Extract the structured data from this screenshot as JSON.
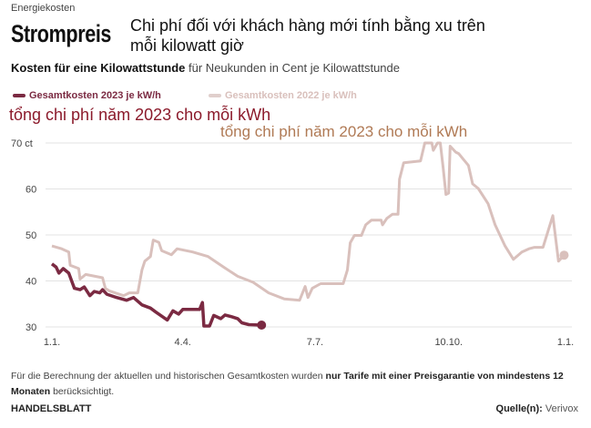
{
  "header": {
    "kicker": "Energiekosten",
    "title": "Strompreis",
    "overlay_translation": "Chi phí đối với khách hàng mới tính bằng xu trên mỗi kilowatt giờ",
    "subtitle_bold": "Kosten für eine Kilowattstunde",
    "subtitle_rest": " für Neukunden in Cent je Kilowattstunde"
  },
  "annotations": {
    "red": "tổng chi phí năm 2023 cho mỗi kWh",
    "tan": "tổng chi phí năm 2023 cho mỗi kWh"
  },
  "colors": {
    "s2023": "#7b2a42",
    "s2022": "#d9c0bc",
    "grid": "#e3e3e3"
  },
  "chart_data": {
    "type": "line",
    "title": "Strompreis",
    "ylabel": "ct",
    "xlabel": "",
    "ylim": [
      30,
      70
    ],
    "xlim_days": [
      0,
      365
    ],
    "yticks": [
      {
        "v": 70,
        "label": "70 ct"
      },
      {
        "v": 60,
        "label": "60"
      },
      {
        "v": 50,
        "label": "50"
      },
      {
        "v": 40,
        "label": "40"
      },
      {
        "v": 30,
        "label": "30"
      }
    ],
    "xticks": [
      {
        "d": 0,
        "label": "1.1."
      },
      {
        "d": 93,
        "label": "4.4."
      },
      {
        "d": 187,
        "label": "7.7."
      },
      {
        "d": 282,
        "label": "10.10."
      },
      {
        "d": 365,
        "label": "1.1."
      }
    ],
    "grid": true,
    "legend_placement": "top-left",
    "series": [
      {
        "name": "Gesamtkosten 2023 je kW/h",
        "color": "#7b2a42",
        "points": [
          [
            0,
            43.7
          ],
          [
            3,
            43
          ],
          [
            5,
            41.7
          ],
          [
            8,
            42.7
          ],
          [
            12,
            41.7
          ],
          [
            16,
            38.4
          ],
          [
            20,
            38.1
          ],
          [
            23,
            38.7
          ],
          [
            27,
            36.8
          ],
          [
            30,
            37.7
          ],
          [
            34,
            37.4
          ],
          [
            36,
            38.1
          ],
          [
            39,
            37.1
          ],
          [
            46,
            36.4
          ],
          [
            53,
            35.8
          ],
          [
            58,
            36.4
          ],
          [
            64,
            34.8
          ],
          [
            70,
            34.1
          ],
          [
            74,
            33.2
          ],
          [
            82,
            31.5
          ],
          [
            86,
            33.5
          ],
          [
            90,
            32.8
          ],
          [
            93,
            33.8
          ],
          [
            105,
            33.8
          ],
          [
            107,
            35.3
          ],
          [
            108,
            30.2
          ],
          [
            112,
            30.2
          ],
          [
            115,
            32.5
          ],
          [
            120,
            31.8
          ],
          [
            123,
            32.6
          ],
          [
            128,
            32.2
          ],
          [
            132,
            31.8
          ],
          [
            135,
            30.9
          ],
          [
            140,
            30.5
          ],
          [
            149,
            30.4
          ]
        ]
      },
      {
        "name": "Gesamtkosten 2022 je kW/h",
        "color": "#d9c0bc",
        "points": [
          [
            0,
            47.6
          ],
          [
            7,
            47
          ],
          [
            12,
            46.3
          ],
          [
            13,
            43.4
          ],
          [
            19,
            42.7
          ],
          [
            20,
            40.4
          ],
          [
            24,
            41.4
          ],
          [
            36,
            40.7
          ],
          [
            38,
            38.4
          ],
          [
            41,
            37.8
          ],
          [
            51,
            36.8
          ],
          [
            55,
            37.4
          ],
          [
            61,
            37.4
          ],
          [
            64,
            42.4
          ],
          [
            66,
            44.3
          ],
          [
            70,
            45.3
          ],
          [
            72,
            48.9
          ],
          [
            76,
            48.4
          ],
          [
            78,
            46.6
          ],
          [
            85,
            45.7
          ],
          [
            89,
            47
          ],
          [
            100,
            46.3
          ],
          [
            111,
            45.3
          ],
          [
            122,
            43
          ],
          [
            132,
            41
          ],
          [
            143,
            39.7
          ],
          [
            154,
            37.4
          ],
          [
            165,
            36.1
          ],
          [
            176,
            35.8
          ],
          [
            180,
            38.8
          ],
          [
            182,
            36.4
          ],
          [
            185,
            38.4
          ],
          [
            191,
            39.4
          ],
          [
            207,
            39.4
          ],
          [
            210,
            42.4
          ],
          [
            212,
            48.3
          ],
          [
            215,
            49.9
          ],
          [
            220,
            49.9
          ],
          [
            223,
            52.2
          ],
          [
            227,
            53.2
          ],
          [
            234,
            53.2
          ],
          [
            235,
            52.2
          ],
          [
            238,
            53.6
          ],
          [
            242,
            54.5
          ],
          [
            246,
            54.5
          ],
          [
            247,
            62.1
          ],
          [
            250,
            65.7
          ],
          [
            262,
            66.1
          ],
          [
            265,
            70
          ],
          [
            270,
            70
          ],
          [
            271,
            68.4
          ],
          [
            274,
            70
          ],
          [
            276,
            70
          ],
          [
            278,
            64.7
          ],
          [
            280,
            58.8
          ],
          [
            282,
            59.1
          ],
          [
            283,
            69.3
          ],
          [
            287,
            68
          ],
          [
            289,
            67.7
          ],
          [
            296,
            65.1
          ],
          [
            299,
            61.1
          ],
          [
            303,
            60.1
          ],
          [
            310,
            56.8
          ],
          [
            315,
            52.2
          ],
          [
            322,
            47.6
          ],
          [
            328,
            44.7
          ],
          [
            334,
            46.3
          ],
          [
            339,
            47
          ],
          [
            343,
            47.3
          ],
          [
            349,
            47.3
          ],
          [
            356,
            54.2
          ],
          [
            360,
            44.3
          ],
          [
            364,
            45.6
          ]
        ]
      }
    ]
  },
  "footer": {
    "note_a": "Für die Berechnung der aktuellen und historischen Gesamtkosten wurden ",
    "note_bold": "nur Tarife mit einer Preisgarantie von mindestens 12 Monaten",
    "note_b": " berücksichtigt.",
    "brand": "HANDELSBLATT",
    "source_label": "Quelle(n):",
    "source_value": " Verivox"
  }
}
